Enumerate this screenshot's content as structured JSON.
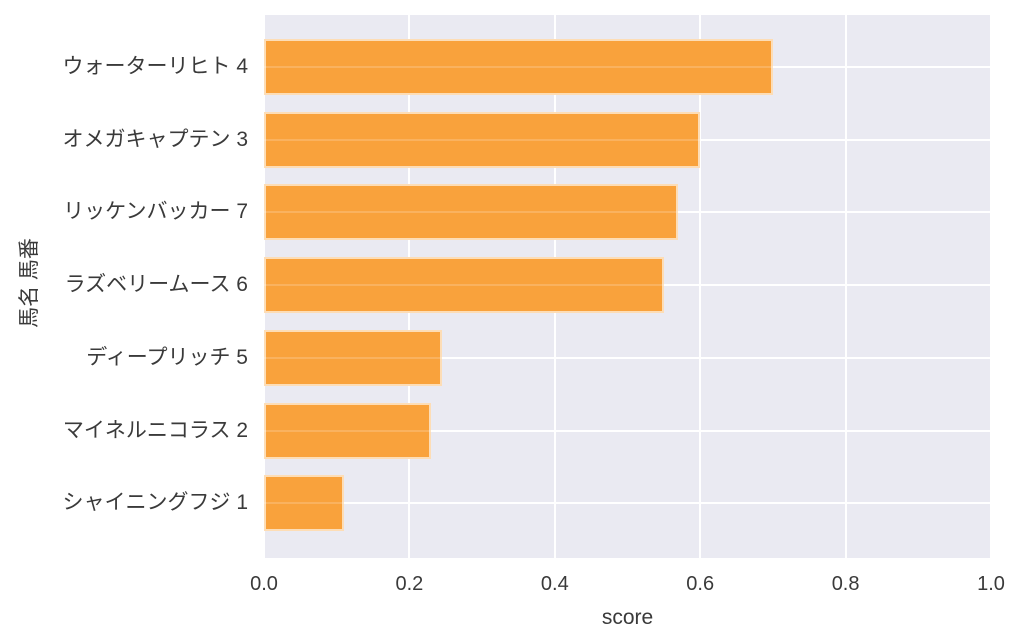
{
  "figure": {
    "background_color": "#ffffff",
    "plot_background_color": "#eaeaf2",
    "grid_color": "#ffffff",
    "bar_color": "#f9a23c",
    "text_color": "#3a3a3a"
  },
  "chart_data": {
    "type": "bar",
    "orientation": "horizontal",
    "title": "",
    "xlabel": "score",
    "ylabel": "馬名 馬番",
    "categories": [
      "ウォーターリヒト 4",
      "オメガキャプテン 3",
      "リッケンバッカー 7",
      "ラズベリームース 6",
      "ディープリッチ 5",
      "マイネルニコラス 2",
      "シャイニングフジ 1"
    ],
    "values": [
      0.7,
      0.6,
      0.57,
      0.55,
      0.245,
      0.23,
      0.11
    ],
    "xlim": [
      0.0,
      1.0
    ],
    "xticks": [
      0.0,
      0.2,
      0.4,
      0.6,
      0.8,
      1.0
    ],
    "xtick_labels": [
      "0.0",
      "0.2",
      "0.4",
      "0.6",
      "0.8",
      "1.0"
    ],
    "grid": true,
    "legend": false,
    "bar_color": "#f9a23c"
  }
}
